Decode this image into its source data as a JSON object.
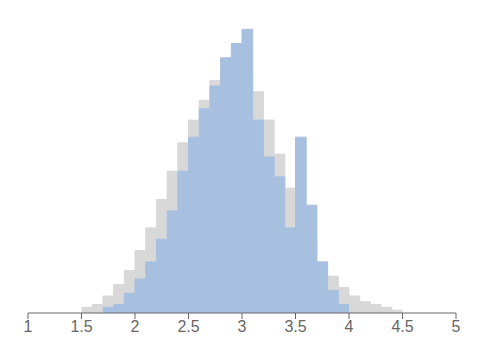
{
  "chart_data": {
    "type": "histogram",
    "title": "",
    "xlim": [
      1.0,
      5.0
    ],
    "xticks": [
      1,
      1.5,
      2,
      2.5,
      3,
      3.5,
      4,
      4.5,
      5
    ],
    "ylim": [
      0,
      104
    ],
    "tick_labels": "x",
    "grid": false,
    "series": [
      {
        "color": "#d8d8d8",
        "bins": [
          1.5,
          1.6,
          1.7,
          1.8,
          1.9,
          2.0,
          2.1,
          2.2,
          2.3,
          2.4,
          2.5,
          2.6,
          2.7,
          2.8,
          2.9,
          3.0,
          3.1,
          3.2,
          3.3,
          3.4,
          3.5,
          3.6,
          3.7,
          3.8,
          3.9,
          4.0,
          4.1,
          4.2,
          4.3,
          4.4,
          4.5
        ],
        "values": [
          2,
          3,
          6,
          10,
          15,
          22,
          30,
          40,
          50,
          60,
          68,
          75,
          82,
          86,
          88,
          85,
          78,
          68,
          56,
          44,
          34,
          25,
          18,
          13,
          9,
          6,
          4,
          3,
          2,
          1
        ]
      },
      {
        "color": "#a8c0e0",
        "bins": [
          1.7,
          1.8,
          1.9,
          2.0,
          2.1,
          2.2,
          2.3,
          2.4,
          2.5,
          2.6,
          2.7,
          2.8,
          2.9,
          3.0,
          3.1,
          3.2,
          3.3,
          3.4,
          3.5,
          3.6,
          3.7,
          3.8,
          3.9,
          4.0
        ],
        "values": [
          2,
          3,
          7,
          12,
          18,
          26,
          36,
          50,
          62,
          72,
          80,
          90,
          95,
          100,
          68,
          55,
          48,
          30,
          62,
          38,
          18,
          8,
          3
        ]
      }
    ]
  }
}
